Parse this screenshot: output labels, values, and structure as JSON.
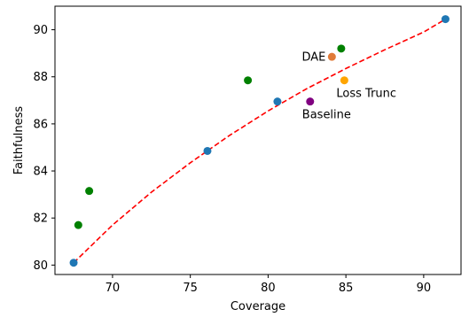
{
  "chart_data": {
    "type": "scatter",
    "title": "",
    "xlabel": "Coverage",
    "ylabel": "Faithfulness",
    "xlim": [
      66.3,
      92.4
    ],
    "ylim": [
      79.6,
      91.0
    ],
    "xticks": [
      70,
      75,
      80,
      85,
      90
    ],
    "yticks": [
      80,
      82,
      84,
      86,
      88,
      90
    ],
    "grid": false,
    "legend": "none",
    "series": [
      {
        "color": "#1f77b4",
        "points": [
          {
            "x": 67.5,
            "y": 80.1
          },
          {
            "x": 76.1,
            "y": 84.85
          },
          {
            "x": 80.6,
            "y": 86.95
          },
          {
            "x": 91.4,
            "y": 90.45
          }
        ]
      },
      {
        "color": "#008000",
        "points": [
          {
            "x": 67.8,
            "y": 81.7
          },
          {
            "x": 68.5,
            "y": 83.15
          },
          {
            "x": 78.7,
            "y": 87.85
          },
          {
            "x": 84.7,
            "y": 89.2
          }
        ]
      },
      {
        "color": "#e07b39",
        "points": [
          {
            "x": 84.1,
            "y": 88.85,
            "label": "DAE"
          }
        ]
      },
      {
        "color": "#ffa500",
        "points": [
          {
            "x": 84.9,
            "y": 87.85,
            "label": "Loss Trunc"
          }
        ]
      },
      {
        "color": "#800080",
        "points": [
          {
            "x": 82.7,
            "y": 86.95,
            "label": "Baseline"
          }
        ]
      }
    ],
    "trend_line": {
      "color": "#ff0000",
      "style": "dashed",
      "x": [
        67.5,
        70,
        72.5,
        75,
        77.5,
        80,
        82.5,
        85,
        87.5,
        90,
        91.4
      ],
      "y": [
        80.1,
        81.7,
        83.1,
        84.35,
        85.5,
        86.55,
        87.5,
        88.35,
        89.15,
        89.9,
        90.45
      ]
    }
  }
}
